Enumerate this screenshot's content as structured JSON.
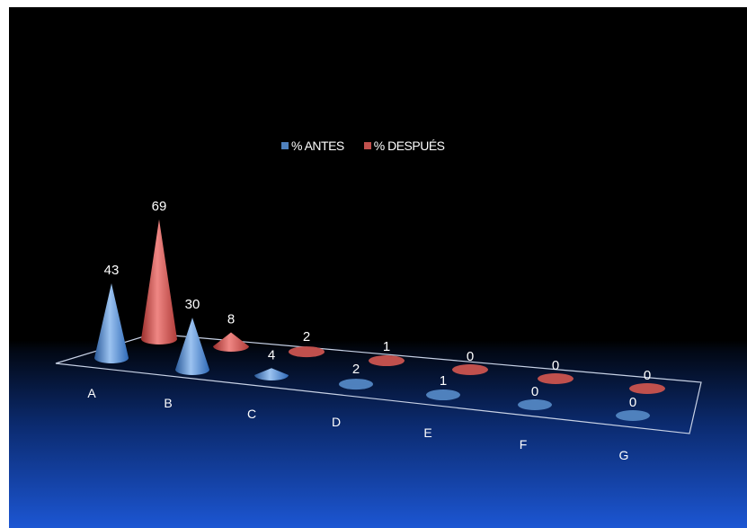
{
  "colors": {
    "antes": "#4f81bd",
    "despues": "#c0504d",
    "background_top": "#000000",
    "background_bottom": "#1c56d3"
  },
  "chart_data": {
    "type": "3d-cone",
    "categories": [
      "A",
      "B",
      "C",
      "D",
      "E",
      "F",
      "G"
    ],
    "series": [
      {
        "name": "% ANTES",
        "values": [
          43,
          30,
          4,
          2,
          1,
          0,
          0
        ]
      },
      {
        "name": "% DESPUÉS",
        "values": [
          69,
          8,
          2,
          1,
          0,
          0,
          0
        ]
      }
    ],
    "legend_position": "top",
    "grid": false
  }
}
